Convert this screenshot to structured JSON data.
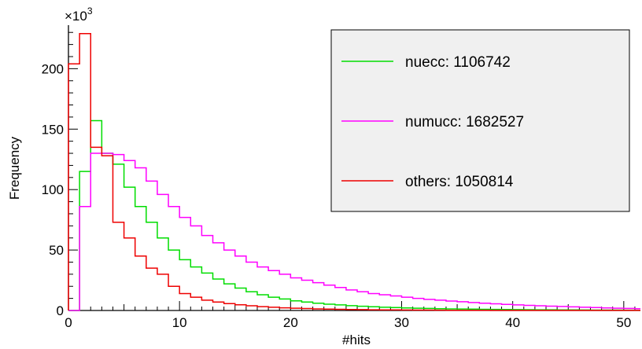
{
  "chart_data": {
    "type": "line",
    "style": "step-histogram",
    "title": "",
    "xlabel": "#hits",
    "ylabel": "Frequency",
    "y_multiplier_label": "×10",
    "y_multiplier_exponent": "3",
    "xlim": [
      0,
      51.5
    ],
    "ylim": [
      0,
      236
    ],
    "x_ticks": [
      0,
      10,
      20,
      30,
      40,
      50
    ],
    "y_ticks": [
      0,
      50,
      100,
      150,
      200
    ],
    "grid": false,
    "legend_position": "top-right",
    "bin_width": 1,
    "bin_starts": [
      0,
      1,
      2,
      3,
      4,
      5,
      6,
      7,
      8,
      9,
      10,
      11,
      12,
      13,
      14,
      15,
      16,
      17,
      18,
      19,
      20,
      21,
      22,
      23,
      24,
      25,
      26,
      27,
      28,
      29,
      30,
      31,
      32,
      33,
      34,
      35,
      36,
      37,
      38,
      39,
      40,
      41,
      42,
      43,
      44,
      45,
      46,
      47,
      48,
      49,
      50,
      51
    ],
    "series": [
      {
        "name": "nuecc",
        "legend_label": "nuecc: 1106742",
        "color": "#00dd00",
        "values": [
          0,
          115,
          157,
          130,
          121,
          102,
          86,
          73,
          60,
          50,
          42,
          36,
          31,
          26,
          22,
          18.5,
          15.5,
          13,
          11,
          9.5,
          8,
          7,
          6,
          5.2,
          4.6,
          4,
          3.5,
          3.1,
          2.7,
          2.4,
          2.1,
          1.9,
          1.7,
          1.5,
          1.3,
          1.2,
          1.1,
          1,
          0.9,
          0.8,
          0.7,
          0.65,
          0.6,
          0.55,
          0.5,
          0.45,
          0.4,
          0.35,
          0.3,
          0.3,
          0.25,
          0.2
        ]
      },
      {
        "name": "numucc",
        "legend_label": "numucc: 1682527",
        "color": "#ff00ff",
        "values": [
          0,
          86,
          130,
          130,
          129,
          124,
          118,
          107,
          96,
          86,
          77,
          70,
          62,
          56,
          50,
          45,
          40,
          36,
          33,
          30,
          27,
          25,
          23,
          21,
          19,
          17,
          15.5,
          14,
          13,
          12,
          11,
          10,
          9.2,
          8.5,
          7.8,
          7.2,
          6.6,
          6,
          5.5,
          5,
          4.6,
          4.2,
          3.9,
          3.6,
          3.3,
          3,
          2.7,
          2.4,
          2.1,
          1.9,
          1.7,
          1.5
        ]
      },
      {
        "name": "others",
        "legend_label": "others: 1050814",
        "color": "#ee0000",
        "values": [
          204,
          229,
          135,
          128,
          73,
          60,
          45,
          35,
          30,
          20,
          14,
          11,
          8.5,
          7,
          5.7,
          4.7,
          3.9,
          3.2,
          2.7,
          2.2,
          1.9,
          1.6,
          1.3,
          1.1,
          0.95,
          0.8,
          0.7,
          0.6,
          0.5,
          0.45,
          0.4,
          0.35,
          0.3,
          0.25,
          0.2,
          0.2,
          0.15,
          0.15,
          0.1,
          0.1,
          0.1,
          0.1,
          0.1,
          0.1,
          0.1,
          0.1,
          0.1,
          0.1,
          0.1,
          0.1,
          0.1,
          0.1
        ]
      }
    ]
  }
}
